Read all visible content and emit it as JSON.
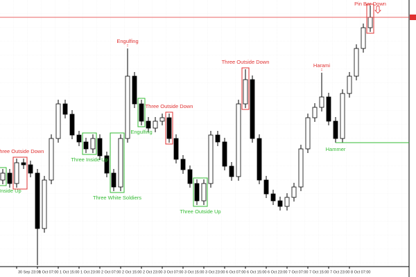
{
  "chart_data": {
    "type": "candlestick",
    "categories": [
      null,
      null,
      "30 Sep 23:00",
      null,
      null,
      "1 Oct 07:00",
      null,
      null,
      "1 Oct 15:00",
      null,
      null,
      "1 Oct 23:00",
      null,
      null,
      "2 Oct 07:00",
      null,
      null,
      "2 Oct 15:00",
      null,
      null,
      "2 Oct 23:00",
      null,
      null,
      "3 Oct 07:00",
      null,
      null,
      "3 Oct 15:00",
      null,
      null,
      "3 Oct 23:00",
      null,
      null,
      "6 Oct 07:00",
      null,
      null,
      "6 Oct 15:00",
      null,
      null,
      "6 Oct 23:00",
      null,
      null,
      "7 Oct 07:00",
      null,
      null,
      "7 Oct 15:00",
      null,
      null,
      "7 Oct 23:00",
      null,
      null,
      "8 Oct 07:00",
      null,
      null,
      null
    ],
    "open": [
      125,
      135,
      120,
      150,
      147,
      135,
      55,
      125,
      185,
      235,
      220,
      190,
      180,
      170,
      185,
      160,
      135,
      115,
      185,
      275,
      235,
      210,
      200,
      210,
      215,
      185,
      155,
      140,
      120,
      95,
      120,
      190,
      180,
      145,
      130,
      235,
      270,
      185,
      125,
      105,
      95,
      87,
      100,
      115,
      170,
      215,
      230,
      245,
      210,
      185,
      250,
      275,
      315,
      345
    ],
    "high": [
      141,
      141,
      156,
      156,
      153,
      141,
      131,
      191,
      241,
      241,
      226,
      196,
      186,
      191,
      191,
      166,
      141,
      191,
      315,
      281,
      241,
      216,
      216,
      221,
      221,
      191,
      161,
      146,
      126,
      126,
      196,
      196,
      186,
      151,
      241,
      285,
      276,
      191,
      131,
      111,
      101,
      106,
      121,
      176,
      221,
      236,
      280,
      251,
      216,
      256,
      281,
      321,
      351,
      377
    ],
    "low": [
      119,
      114,
      114,
      141,
      129,
      2,
      49,
      119,
      179,
      214,
      184,
      174,
      164,
      164,
      154,
      129,
      109,
      109,
      179,
      229,
      204,
      194,
      194,
      204,
      179,
      149,
      134,
      114,
      89,
      89,
      114,
      174,
      139,
      124,
      124,
      229,
      179,
      119,
      99,
      89,
      81,
      81,
      94,
      109,
      164,
      209,
      224,
      204,
      179,
      179,
      244,
      269,
      309,
      339
    ],
    "close": [
      135,
      120,
      150,
      147,
      135,
      55,
      125,
      185,
      235,
      220,
      190,
      180,
      170,
      185,
      160,
      135,
      115,
      185,
      275,
      235,
      210,
      200,
      210,
      215,
      185,
      155,
      140,
      120,
      95,
      120,
      190,
      180,
      145,
      130,
      235,
      270,
      185,
      125,
      105,
      95,
      87,
      100,
      115,
      170,
      215,
      230,
      245,
      210,
      185,
      250,
      275,
      315,
      345,
      360
    ],
    "ylim": [
      0,
      385
    ],
    "bull_color": "#ffffff",
    "bear_color": "#000000",
    "price_line_color": "#e03030",
    "annotations": [
      {
        "text": "Three Inside Up",
        "color": "#33bb33",
        "from": 0,
        "to": 0,
        "position": "below",
        "box": true
      },
      {
        "text": "Three Outside Down",
        "color": "#e03030",
        "from": 2,
        "to": 3,
        "position": "above",
        "box": true
      },
      {
        "text": "Three Inside Up",
        "color": "#33bb33",
        "from": 12,
        "to": 13,
        "position": "below",
        "box": true
      },
      {
        "text": "Three White Soldiers",
        "color": "#33bb33",
        "from": 16,
        "to": 17,
        "position": "below",
        "box": true
      },
      {
        "text": "Engulfing",
        "color": "#e03030",
        "from": 18,
        "to": 18,
        "position": "above",
        "box": false
      },
      {
        "text": "Engulfing",
        "color": "#33bb33",
        "from": 20,
        "to": 20,
        "position": "below",
        "box": true
      },
      {
        "text": "Three Outside Down",
        "color": "#e03030",
        "from": 24,
        "to": 24,
        "position": "above",
        "box": true
      },
      {
        "text": "Three Outside Up",
        "color": "#33bb33",
        "from": 28,
        "to": 29,
        "position": "below",
        "box": true
      },
      {
        "text": "Three Outside Down",
        "color": "#e03030",
        "from": 35,
        "to": 35,
        "position": "above",
        "box": true
      },
      {
        "text": "Harami",
        "color": "#e03030",
        "from": 46,
        "to": 46,
        "position": "above",
        "box": false
      },
      {
        "text": "Hammer",
        "color": "#33bb33",
        "from": 48,
        "to": 48,
        "position": "below",
        "box": false,
        "line": true
      },
      {
        "text": "Pin Bar Down",
        "color": "#e03030",
        "from": 53,
        "to": 53,
        "position": "above",
        "box": true
      }
    ]
  }
}
